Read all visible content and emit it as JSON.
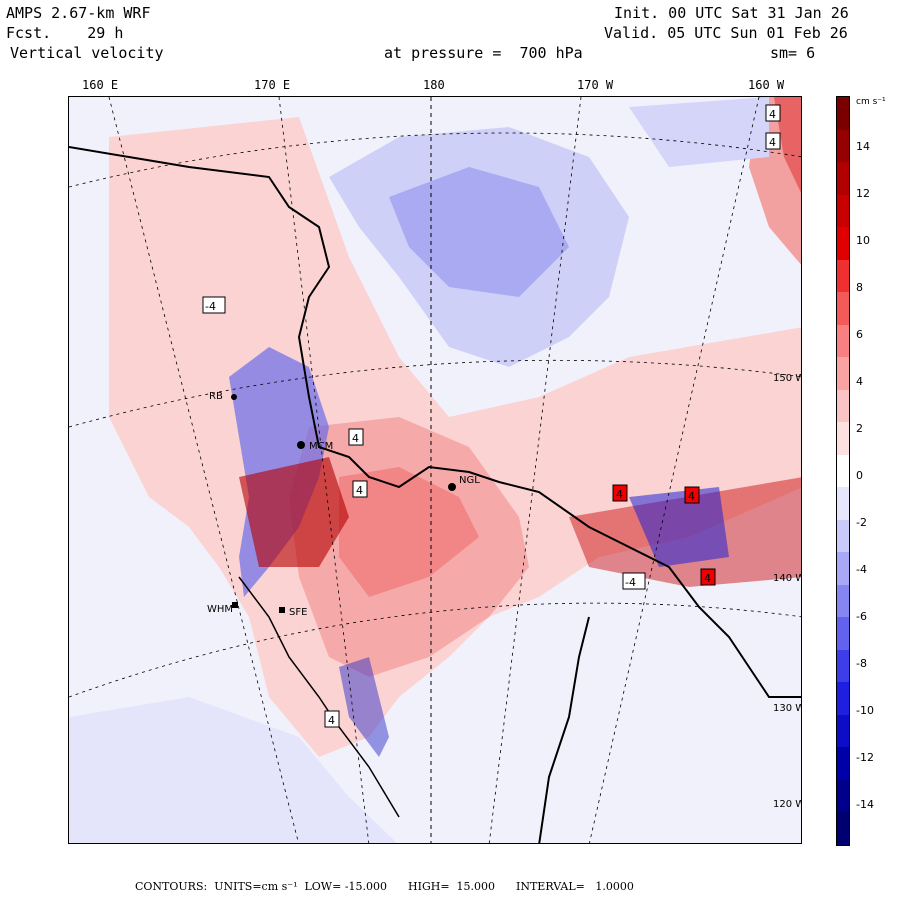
{
  "header": {
    "model": "AMPS 2.67-km WRF",
    "forecast": "Fcst.    29 h",
    "field": "Vertical velocity",
    "level": "at pressure =  700 hPa",
    "init": "Init. 00 UTC Sat 31 Jan 26",
    "valid": "Valid. 05 UTC Sun 01 Feb 26",
    "smoothing": "sm= 6"
  },
  "longitude_labels": [
    "160 E",
    "170 E",
    "180",
    "170 W",
    "160 W"
  ],
  "latitude_labels": [
    "150 W",
    "140 W",
    "130 W",
    "120 W"
  ],
  "stations": [
    "RB",
    "MCM",
    "NGL",
    "WHM",
    "SFE"
  ],
  "max_labels": [
    "4",
    "4",
    "4",
    "4",
    "-4",
    "4",
    "4",
    "-4",
    "4",
    "4"
  ],
  "colorbar": {
    "unit_label": "cm s⁻¹",
    "tick_labels": [
      "14",
      "12",
      "10",
      "8",
      "6",
      "4",
      "2",
      "0",
      "-2",
      "-4",
      "-6",
      "-8",
      "-10",
      "-12",
      "-14"
    ],
    "colors": [
      "#7a0000",
      "#950000",
      "#b00000",
      "#c80000",
      "#e00000",
      "#f03030",
      "#f55a5a",
      "#f88080",
      "#f9a3a3",
      "#fbc4c4",
      "#fde0e0",
      "#ffffff",
      "#e6e6fd",
      "#c9c9fa",
      "#a8a8f6",
      "#8686f2",
      "#6262ee",
      "#3d3dea",
      "#1f1fe0",
      "#0d0dc8",
      "#0000a8",
      "#00008a",
      "#000070"
    ]
  },
  "footer": {
    "contours": "CONTOURS:  UNITS=cm s⁻¹  LOW= -15.000      HIGH=  15.000      INTERVAL=   1.0000"
  }
}
